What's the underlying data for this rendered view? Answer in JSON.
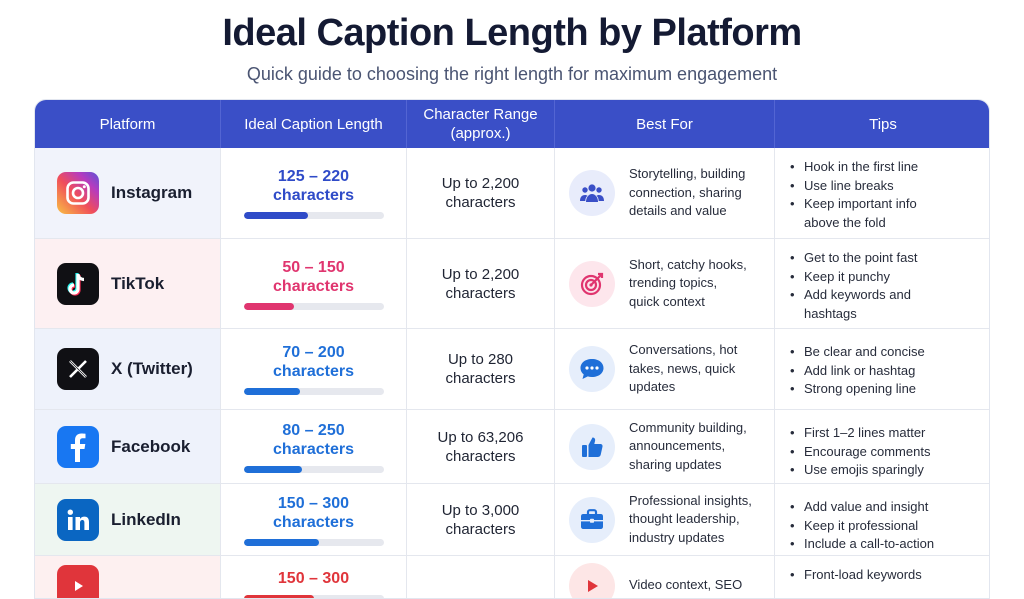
{
  "title": "Ideal Caption Length by Platform",
  "subtitle": "Quick guide to choosing the right length for maximum engagement",
  "headers": {
    "platform": "Platform",
    "ideal": "Ideal Caption Length",
    "range_line1": "Character Range",
    "range_line2": "(approx.)",
    "best": "Best For",
    "tips": "Tips"
  },
  "rows": [
    {
      "platform": "Instagram",
      "icon": "instagram-logo-icon",
      "ideal_line1": "125 – 220",
      "ideal_line2": "characters",
      "ideal_color": "#2f4bc8",
      "bar_fraction": 0.46,
      "range_line1": "Up to 2,200",
      "range_line2": "characters",
      "best_icon": "group-icon",
      "best_lines": [
        "Storytelling, building",
        "connection, sharing",
        "details and value"
      ],
      "tips": [
        "Hook in the first line",
        "Use line breaks",
        "Keep important info",
        "above the fold"
      ]
    },
    {
      "platform": "TikTok",
      "icon": "tiktok-logo-icon",
      "ideal_line1": "50 – 150",
      "ideal_line2": "characters",
      "ideal_color": "#e0356f",
      "bar_fraction": 0.36,
      "range_line1": "Up to 2,200",
      "range_line2": "characters",
      "best_icon": "target-icon",
      "best_lines": [
        "Short, catchy hooks,",
        "trending topics,",
        "quick context"
      ],
      "tips": [
        "Get to the point fast",
        "Keep it punchy",
        "Add keywords and",
        "hashtags"
      ]
    },
    {
      "platform": "X (Twitter)",
      "icon": "x-logo-icon",
      "ideal_line1": "70 – 200",
      "ideal_line2": "characters",
      "ideal_color": "#1f6fd8",
      "bar_fraction": 0.4,
      "range_line1": "Up to 280",
      "range_line2": "characters",
      "best_icon": "chat-bubble-icon",
      "best_lines": [
        "Conversations, hot",
        "takes, news, quick",
        "updates"
      ],
      "tips": [
        "Be clear and concise",
        "Add link or hashtag",
        "Strong opening line"
      ]
    },
    {
      "platform": "Facebook",
      "icon": "facebook-logo-icon",
      "ideal_line1": "80 – 250",
      "ideal_line2": "characters",
      "ideal_color": "#1f6fd8",
      "bar_fraction": 0.42,
      "range_line1": "Up to 63,206",
      "range_line2": "characters",
      "best_icon": "thumbs-up-icon",
      "best_lines": [
        "Community building,",
        "announcements,",
        "sharing updates"
      ],
      "tips": [
        "First 1–2 lines matter",
        "Encourage comments",
        "Use emojis sparingly"
      ]
    },
    {
      "platform": "LinkedIn",
      "icon": "linkedin-logo-icon",
      "ideal_line1": "150 – 300",
      "ideal_line2": "characters",
      "ideal_color": "#1f6fd8",
      "bar_fraction": 0.54,
      "range_line1": "Up to 3,000",
      "range_line2": "characters",
      "best_icon": "briefcase-icon",
      "best_lines": [
        "Professional insights,",
        "thought leadership,",
        "industry updates"
      ],
      "tips": [
        "Add value and insight",
        "Keep it professional",
        "Include a call-to-action"
      ]
    },
    {
      "platform": "",
      "icon": "youtube-logo-icon",
      "ideal_line1": "150 – 300",
      "ideal_line2": "",
      "ideal_color": "#e0353b",
      "bar_fraction": 0.5,
      "range_line1": "",
      "range_line2": "",
      "best_icon": "play-icon",
      "best_lines": [
        "Video context, SEO"
      ],
      "tips": [
        "Front-load keywords"
      ]
    }
  ]
}
